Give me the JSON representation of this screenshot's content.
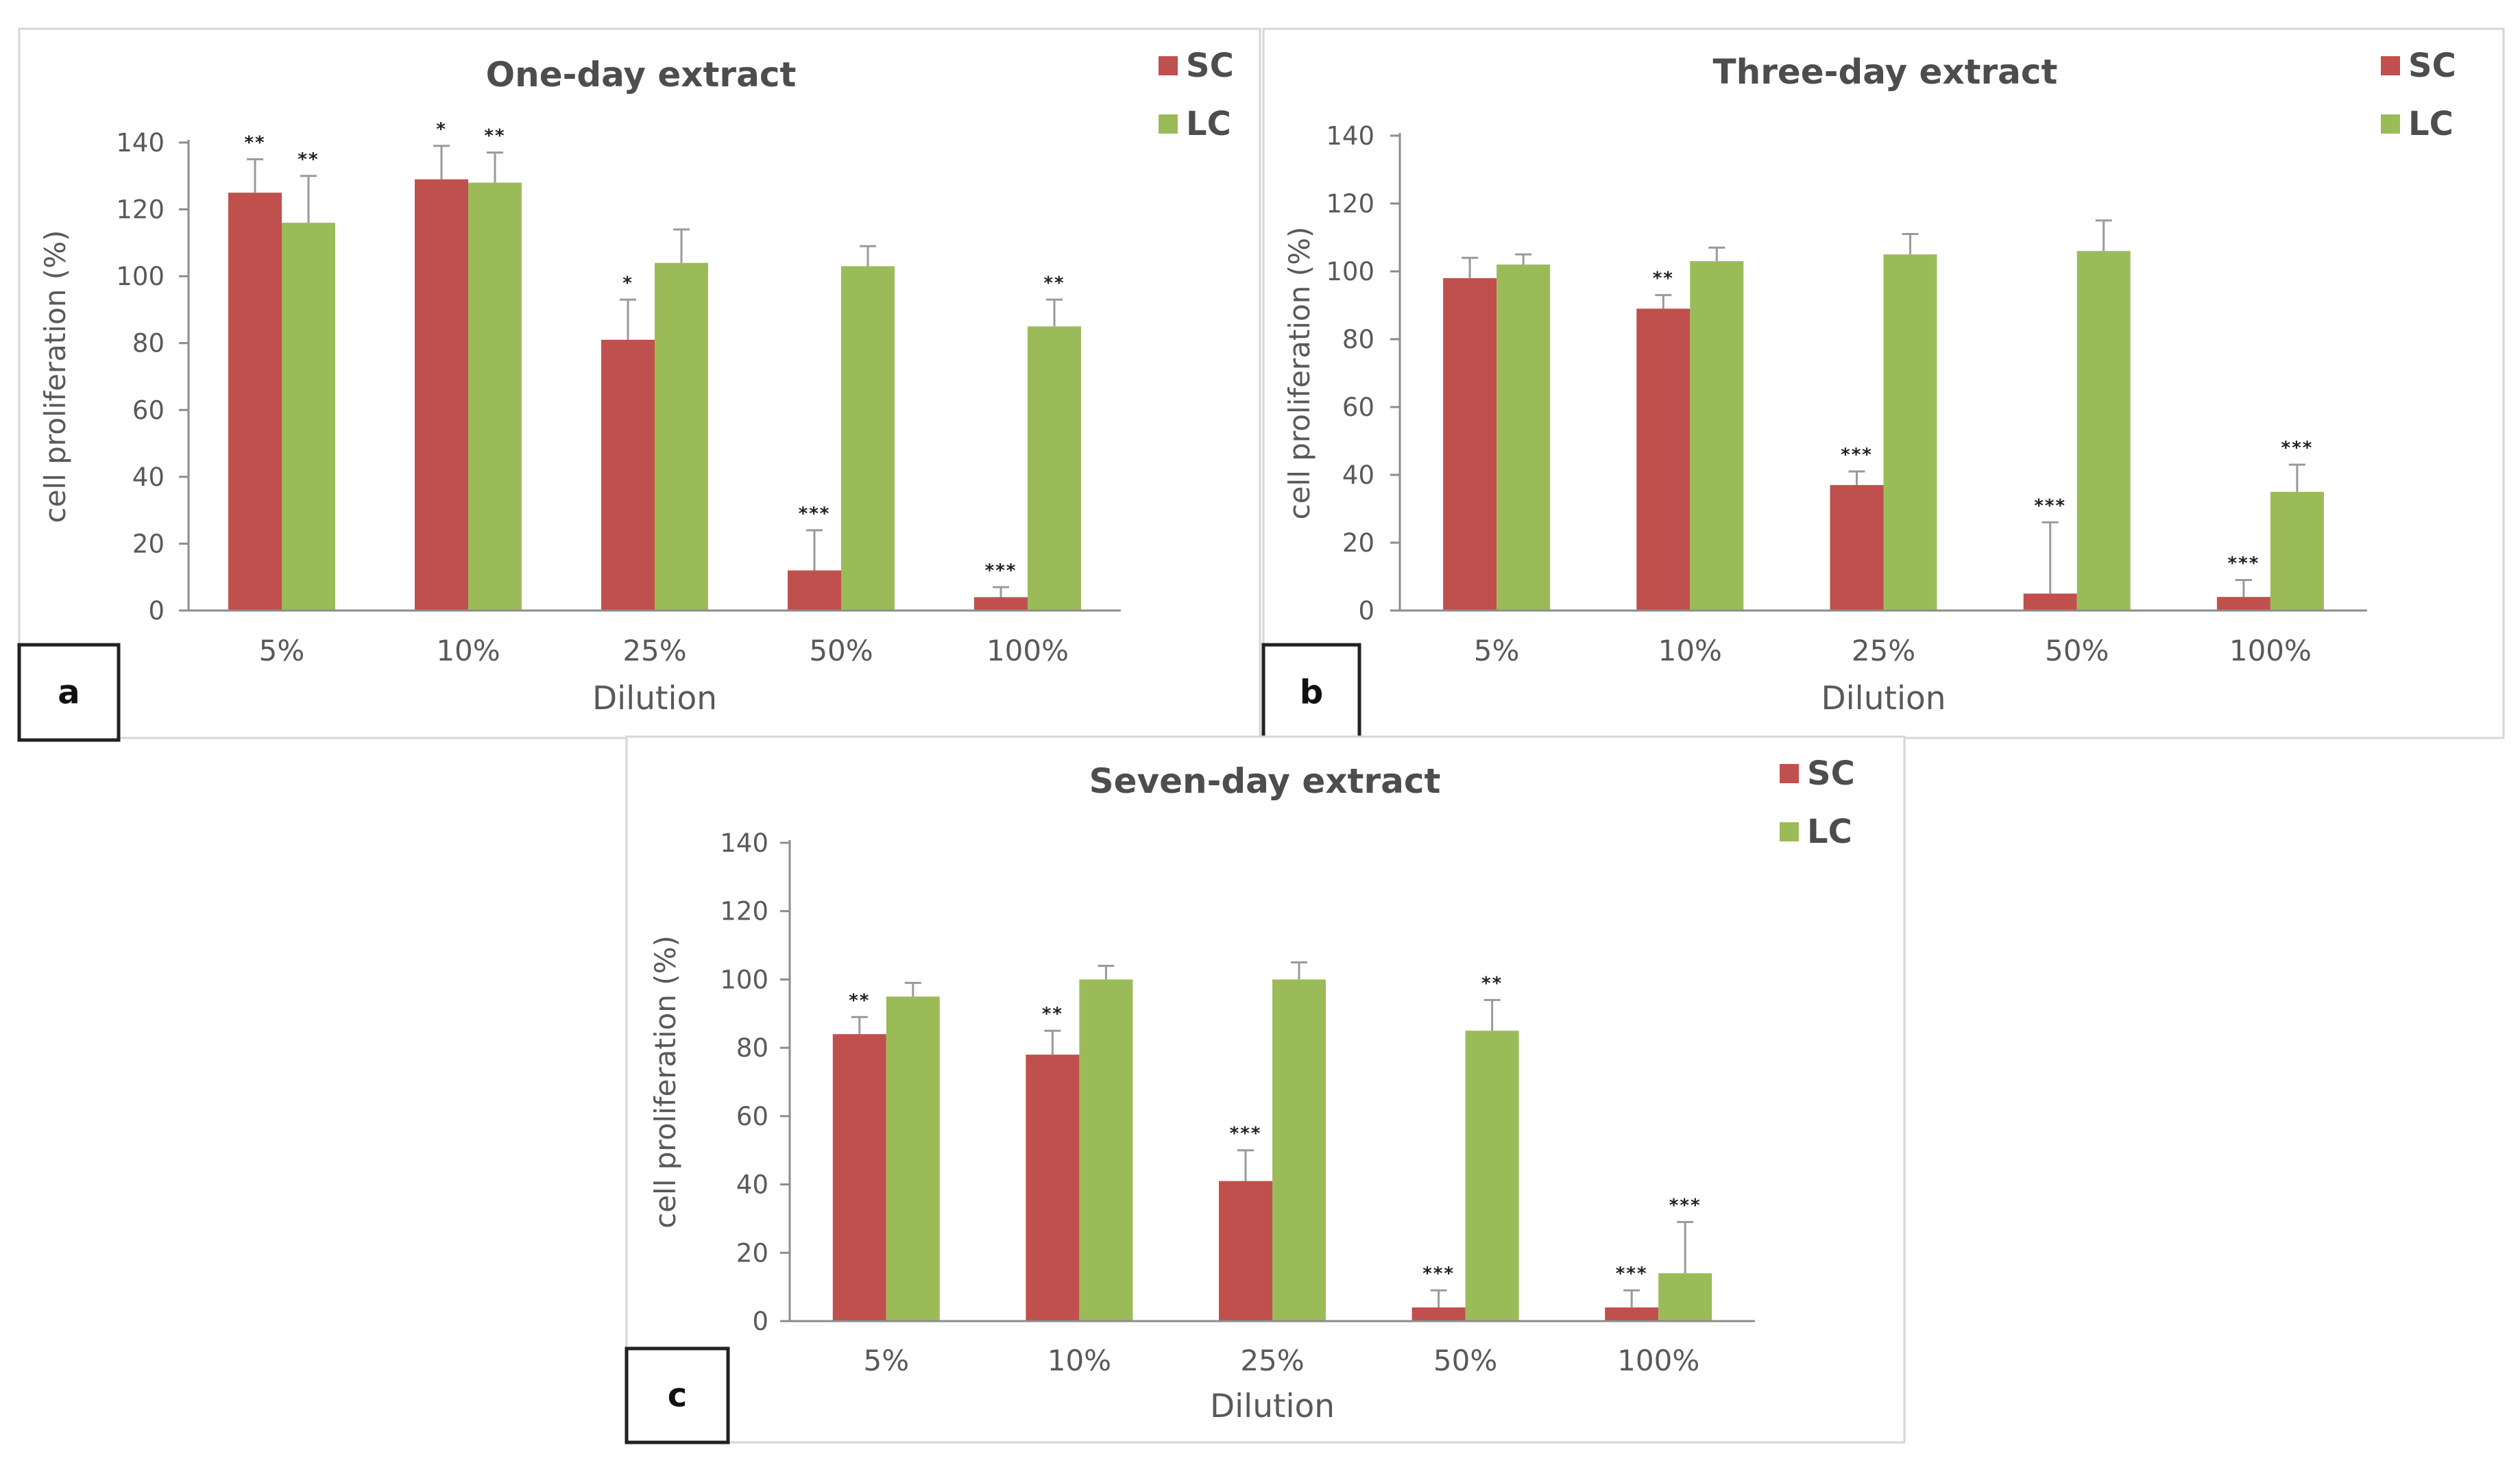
{
  "chart_data": [
    {
      "type": "bar",
      "panel_label": "a",
      "title": "One-day extract",
      "xlabel": "Dilution",
      "ylabel": "cell proliferation (%)",
      "ylim": [
        0,
        140
      ],
      "yticks": [
        0,
        20,
        40,
        60,
        80,
        100,
        120,
        140
      ],
      "categories": [
        "5%",
        "10%",
        "25%",
        "50%",
        "100%"
      ],
      "series": [
        {
          "name": "SC",
          "color": "#c0504d",
          "values": [
            125,
            129,
            81,
            12,
            4
          ],
          "errors": [
            10,
            10,
            12,
            12,
            3
          ],
          "significance": [
            "**",
            "*",
            "*",
            "***",
            "***"
          ]
        },
        {
          "name": "LC",
          "color": "#9bbb59",
          "values": [
            116,
            128,
            104,
            103,
            85
          ],
          "errors": [
            14,
            9,
            10,
            6,
            8
          ],
          "significance": [
            "**",
            "**",
            "",
            "",
            "**"
          ]
        }
      ]
    },
    {
      "type": "bar",
      "panel_label": "b",
      "title": "Three-day extract",
      "xlabel": "Dilution",
      "ylabel": "cell proliferation (%)",
      "ylim": [
        0,
        140
      ],
      "yticks": [
        0,
        20,
        40,
        60,
        80,
        100,
        120,
        140
      ],
      "categories": [
        "5%",
        "10%",
        "25%",
        "50%",
        "100%"
      ],
      "series": [
        {
          "name": "SC",
          "color": "#c0504d",
          "values": [
            98,
            89,
            37,
            5,
            4
          ],
          "errors": [
            6,
            4,
            4,
            21,
            5
          ],
          "significance": [
            "",
            "**",
            "***",
            "***",
            "***"
          ]
        },
        {
          "name": "LC",
          "color": "#9bbb59",
          "values": [
            102,
            103,
            105,
            106,
            35
          ],
          "errors": [
            3,
            4,
            6,
            9,
            8
          ],
          "significance": [
            "",
            "",
            "",
            "",
            "***"
          ]
        }
      ]
    },
    {
      "type": "bar",
      "panel_label": "c",
      "title": "Seven-day extract",
      "xlabel": "Dilution",
      "ylabel": "cell proliferation (%)",
      "ylim": [
        0,
        140
      ],
      "yticks": [
        0,
        20,
        40,
        60,
        80,
        100,
        120,
        140
      ],
      "categories": [
        "5%",
        "10%",
        "25%",
        "50%",
        "100%"
      ],
      "series": [
        {
          "name": "SC",
          "color": "#c0504d",
          "values": [
            84,
            78,
            41,
            4,
            4
          ],
          "errors": [
            5,
            7,
            9,
            5,
            5
          ],
          "significance": [
            "**",
            "**",
            "***",
            "***",
            "***"
          ]
        },
        {
          "name": "LC",
          "color": "#9bbb59",
          "values": [
            95,
            100,
            100,
            85,
            14
          ],
          "errors": [
            4,
            4,
            5,
            9,
            15
          ],
          "significance": [
            "",
            "",
            "",
            "**",
            "***"
          ]
        }
      ]
    }
  ]
}
